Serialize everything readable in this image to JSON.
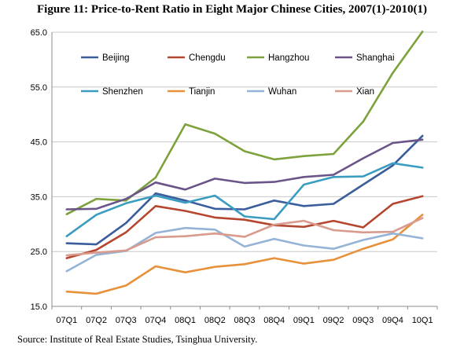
{
  "title": "Figure 11:   Price-to-Rent Ratio in Eight Major Chinese Cities, 2007(1)-2010(1)",
  "source": "Source: Institute of Real Estate Studies, Tsinghua University.",
  "chart_data": {
    "type": "line",
    "title": "Figure 11:   Price-to-Rent Ratio in Eight Major Chinese Cities, 2007(1)-2010(1)",
    "xlabel": "",
    "ylabel": "",
    "ylim": [
      15.0,
      65.0
    ],
    "yticks": [
      "15.0",
      "25.0",
      "35.0",
      "45.0",
      "55.0",
      "65.0"
    ],
    "grid": "horizontal",
    "legend": "top, inside plot, 4 columns x 2 rows",
    "categories": [
      "07Q1",
      "07Q2",
      "07Q3",
      "07Q4",
      "08Q1",
      "08Q2",
      "08Q3",
      "08Q4",
      "09Q1",
      "09Q2",
      "09Q3",
      "09Q4",
      "10Q1"
    ],
    "series": [
      {
        "name": "Beijing",
        "color": "#3a5d9c",
        "values": [
          26.5,
          26.3,
          30.2,
          35.6,
          34.3,
          32.8,
          32.7,
          34.3,
          33.3,
          33.7,
          37.2,
          40.7,
          46.1
        ]
      },
      {
        "name": "Chengdu",
        "color": "#b5462f",
        "values": [
          23.8,
          25.3,
          28.5,
          33.3,
          32.4,
          31.2,
          30.8,
          29.8,
          29.5,
          30.6,
          29.4,
          33.7,
          35.1
        ]
      },
      {
        "name": "Hangzhou",
        "color": "#7da23c",
        "values": [
          31.8,
          34.6,
          34.3,
          38.5,
          48.2,
          46.5,
          43.3,
          41.8,
          42.4,
          42.8,
          48.7,
          57.6,
          65.1
        ]
      },
      {
        "name": "Shanghai",
        "color": "#6a5488",
        "values": [
          32.7,
          32.8,
          34.6,
          37.6,
          36.3,
          38.3,
          37.5,
          37.7,
          38.6,
          39.0,
          42.0,
          44.8,
          45.4
        ]
      },
      {
        "name": "Shenzhen",
        "color": "#3a9cc0",
        "values": [
          27.8,
          31.7,
          33.8,
          35.2,
          33.9,
          35.2,
          31.4,
          30.9,
          37.2,
          38.6,
          38.7,
          41.1,
          40.3
        ]
      },
      {
        "name": "Tianjin",
        "color": "#e7913b",
        "values": [
          17.7,
          17.3,
          18.8,
          22.3,
          21.2,
          22.2,
          22.7,
          23.8,
          22.8,
          23.5,
          25.5,
          27.2,
          31.7
        ]
      },
      {
        "name": "Wuhan",
        "color": "#94b3d6",
        "values": [
          21.4,
          24.4,
          25.1,
          28.4,
          29.3,
          29.0,
          25.9,
          27.3,
          26.1,
          25.5,
          27.1,
          28.3,
          27.4
        ]
      },
      {
        "name": "Xian",
        "color": "#d89b8d",
        "values": [
          24.3,
          24.8,
          25.2,
          27.6,
          27.8,
          28.3,
          27.7,
          29.9,
          30.6,
          28.9,
          28.5,
          28.6,
          31.1
        ]
      }
    ]
  }
}
